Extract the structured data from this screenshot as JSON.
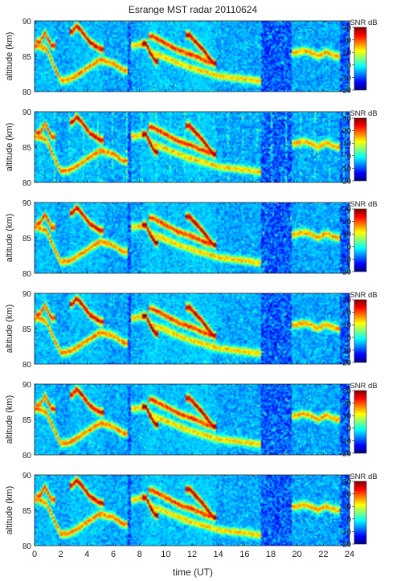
{
  "figure": {
    "title": "Esrange MST radar 20110624"
  },
  "chart_data": {
    "type": "heatmap",
    "title": "Esrange MST radar 20110624",
    "xlabel": "time (UT)",
    "xlim": [
      0,
      24
    ],
    "x_ticks": [
      0,
      2,
      4,
      6,
      8,
      10,
      12,
      14,
      16,
      18,
      20,
      22,
      24
    ],
    "x_tick_labels": [
      "0",
      "2",
      "4",
      "6",
      "8",
      "10",
      "12",
      "14",
      "16",
      "18",
      "20",
      "22",
      "24"
    ],
    "colormap": "jet",
    "colorbar_label": "SNR dB",
    "colorbar_range": [
      -20,
      30
    ],
    "colorbar_ticks": [
      -20,
      -10,
      0,
      10,
      20,
      30
    ],
    "colorbar_tick_labels": [
      "-20",
      "-10",
      "0",
      "10",
      "20",
      "30"
    ],
    "panels": [
      {
        "ylabel": "altitude (km)",
        "ylim": [
          80,
          90
        ],
        "y_ticks": [
          80,
          85,
          90
        ],
        "y_tick_labels": [
          "80",
          "85",
          "90"
        ]
      },
      {
        "ylabel": "altitude (km)",
        "ylim": [
          80,
          90
        ],
        "y_ticks": [
          80,
          85,
          90
        ],
        "y_tick_labels": [
          "80",
          "85",
          "90"
        ]
      },
      {
        "ylabel": "altitude (km)",
        "ylim": [
          80,
          90
        ],
        "y_ticks": [
          80,
          85,
          90
        ],
        "y_tick_labels": [
          "80",
          "85",
          "90"
        ]
      },
      {
        "ylabel": "altitude (km)",
        "ylim": [
          80,
          90
        ],
        "y_ticks": [
          80,
          85,
          90
        ],
        "y_tick_labels": [
          "80",
          "85",
          "90"
        ]
      },
      {
        "ylabel": "altitude (km)",
        "ylim": [
          80,
          90
        ],
        "y_ticks": [
          80,
          85,
          90
        ],
        "y_tick_labels": [
          "80",
          "85",
          "90"
        ]
      },
      {
        "ylabel": "altitude (km)",
        "ylim": [
          80,
          90
        ],
        "y_ticks": [
          80,
          85,
          90
        ],
        "y_tick_labels": [
          "80",
          "85",
          "90"
        ]
      }
    ],
    "echo_layers": [
      {
        "t": [
          0.3,
          0.9,
          1.5,
          2.0,
          2.6,
          3.2,
          4.0,
          5.0,
          6.0,
          6.8
        ],
        "alt": [
          86.5,
          86.0,
          83.5,
          81.6,
          81.7,
          82.3,
          83.3,
          84.5,
          84.0,
          83.0
        ],
        "peak_snr": 18
      },
      {
        "t": [
          0.4,
          0.8,
          1.3
        ],
        "alt": [
          87.0,
          88.3,
          86.5
        ],
        "peak_snr": 22
      },
      {
        "t": [
          2.9,
          3.2,
          3.6,
          4.2,
          5.0
        ],
        "alt": [
          88.5,
          89.3,
          88.5,
          87.0,
          86.0
        ],
        "peak_snr": 26
      },
      {
        "t": [
          7.6,
          8.4,
          9.0,
          10.0,
          11.0,
          12.0,
          13.0,
          14.0,
          15.0,
          16.0,
          17.0
        ],
        "alt": [
          86.5,
          86.8,
          85.5,
          84.8,
          84.0,
          83.3,
          82.8,
          82.2,
          82.0,
          81.8,
          81.5
        ],
        "peak_snr": 14
      },
      {
        "t": [
          8.5,
          8.8,
          9.2
        ],
        "alt": [
          86.8,
          85.5,
          84.3
        ],
        "peak_snr": 30
      },
      {
        "t": [
          9.0,
          10.0,
          11.0,
          12.0,
          13.2
        ],
        "alt": [
          87.8,
          86.8,
          85.8,
          85.2,
          84.2
        ],
        "peak_snr": 22
      },
      {
        "t": [
          11.8,
          12.3,
          12.8,
          13.2,
          13.6
        ],
        "alt": [
          88.0,
          87.0,
          86.0,
          85.0,
          84.0
        ],
        "peak_snr": 28
      },
      {
        "t": [
          19.8,
          20.5,
          21.0,
          21.6,
          22.2,
          23.0
        ],
        "alt": [
          85.5,
          85.8,
          85.6,
          85.0,
          85.6,
          85.0
        ],
        "peak_snr": 16
      }
    ]
  }
}
